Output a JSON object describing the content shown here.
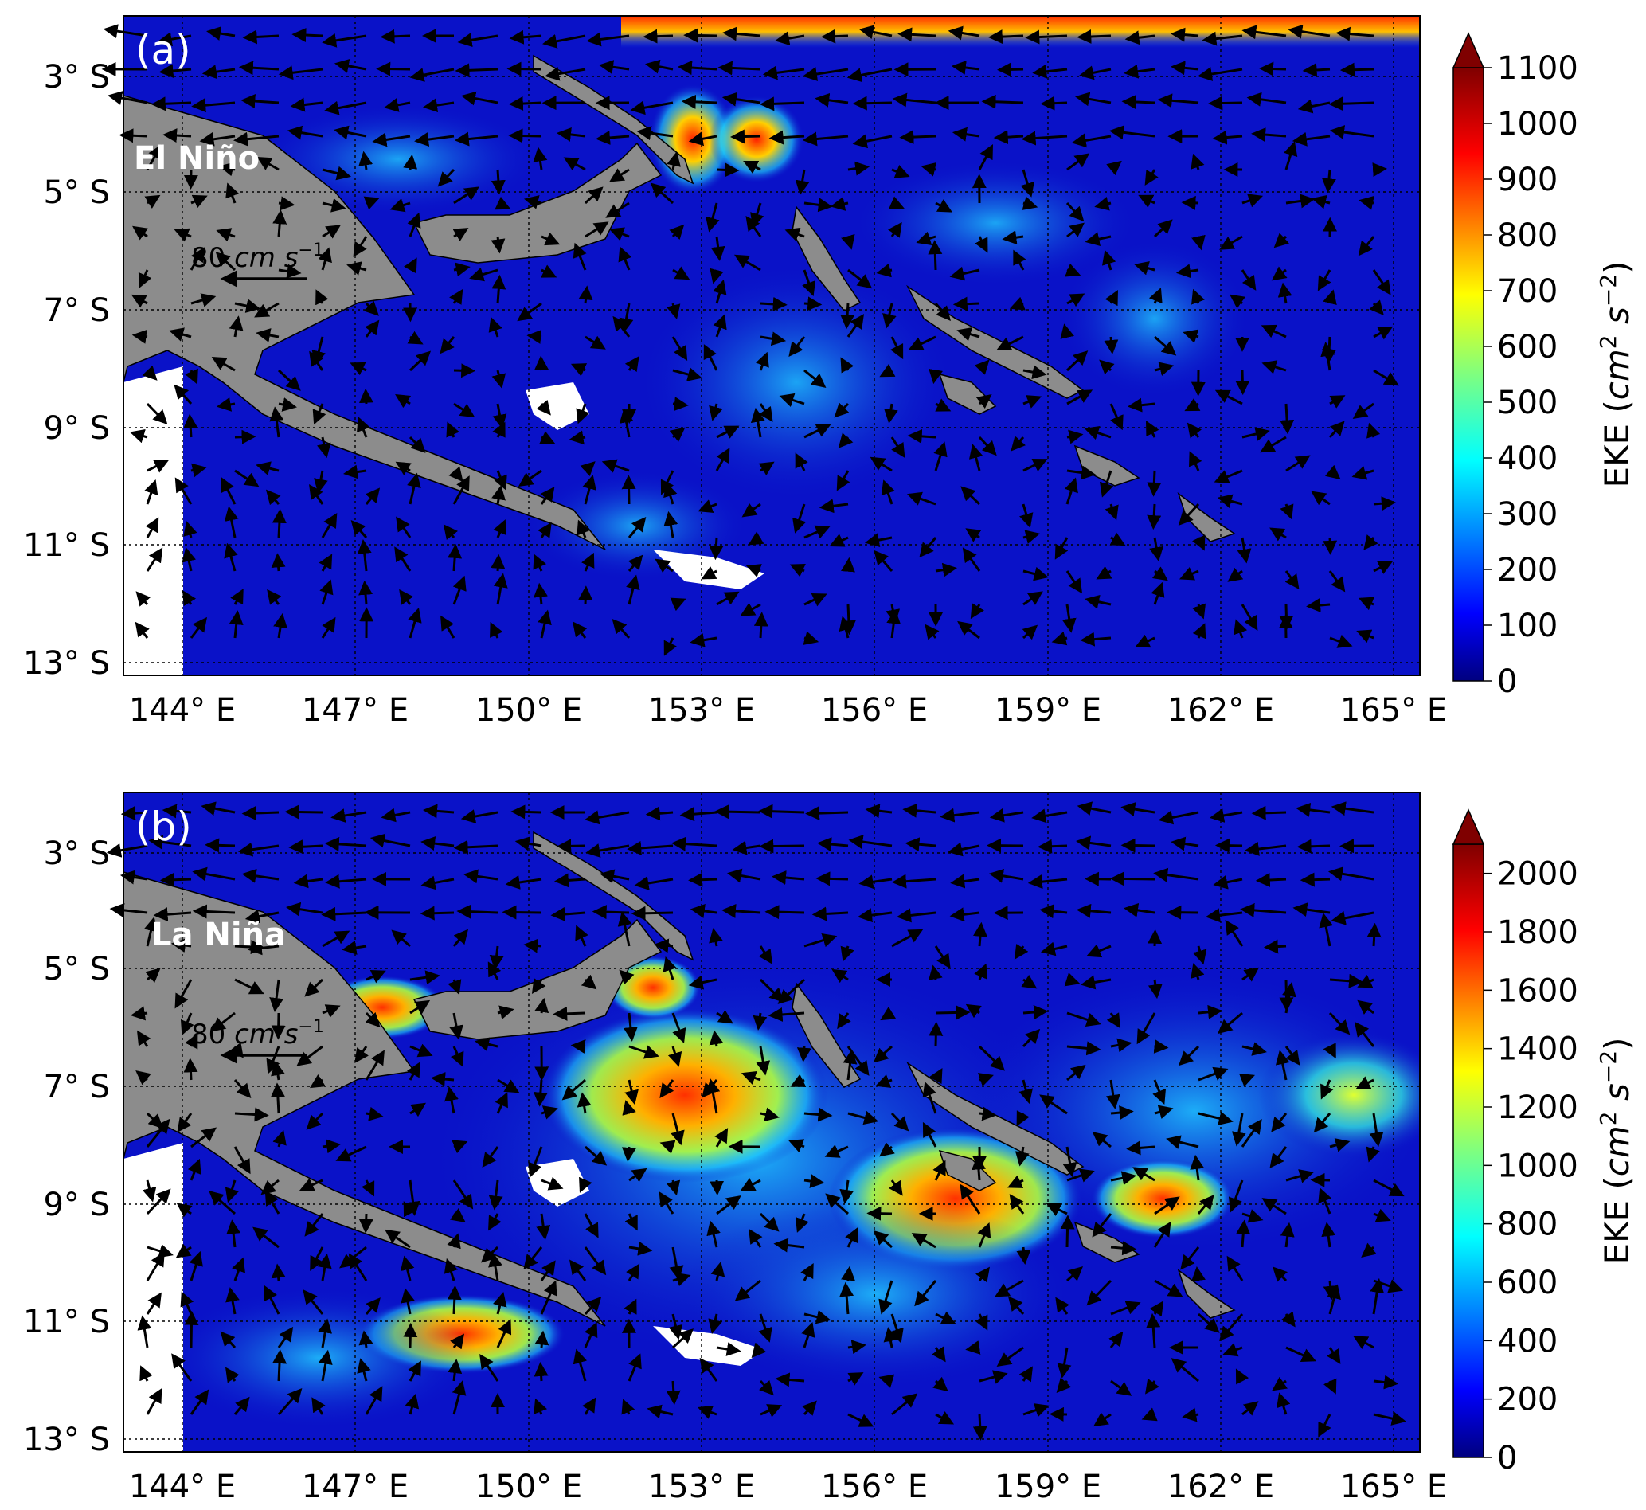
{
  "panels": [
    {
      "tag": "(a)",
      "label": "El Niño",
      "scale_label": "80",
      "scale_unit": "cm s",
      "scale_exp": "−1",
      "cbar_ticks": [
        "0",
        "100",
        "200",
        "300",
        "400",
        "500",
        "600",
        "700",
        "800",
        "900",
        "1000",
        "1100"
      ],
      "cbar_max": 1100,
      "cbar_title_pre": "EKE (",
      "cbar_title_cm": "cm",
      "cbar_title_sup1": "2",
      "cbar_title_s": " s",
      "cbar_title_sup2": "−2",
      "cbar_title_post": ")"
    },
    {
      "tag": "(b)",
      "label": "La Niña",
      "scale_label": "80",
      "scale_unit": "cm s",
      "scale_exp": "−1",
      "cbar_ticks": [
        "0",
        "200",
        "400",
        "600",
        "800",
        "1000",
        "1200",
        "1400",
        "1600",
        "1800",
        "2000"
      ],
      "cbar_max": 2100,
      "cbar_title_pre": "EKE (",
      "cbar_title_cm": "cm",
      "cbar_title_sup1": "2",
      "cbar_title_s": " s",
      "cbar_title_sup2": "−2",
      "cbar_title_post": ")"
    }
  ],
  "axes": {
    "lat_labels": [
      "3° S",
      "5° S",
      "7° S",
      "9° S",
      "11° S",
      "13° S"
    ],
    "lon_labels": [
      "144° E",
      "147° E",
      "150° E",
      "153° E",
      "156° E",
      "159° E",
      "162° E",
      "165° E"
    ]
  },
  "colors": {
    "ocean_low": "#0a12c8",
    "land": "#8c8c8c",
    "jet_colormap": [
      "#00007f",
      "#0000ff",
      "#007fff",
      "#00ffff",
      "#7fff7f",
      "#ffff00",
      "#ff7f00",
      "#ff0000",
      "#7f0000"
    ]
  }
}
